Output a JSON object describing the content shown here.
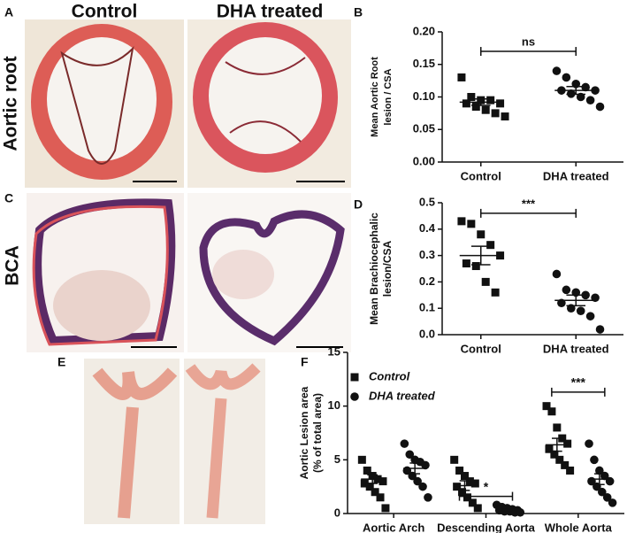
{
  "figure": {
    "panel_letters": [
      "A",
      "C",
      "E"
    ],
    "column_labels": [
      "Control",
      "DHA treated"
    ],
    "row_labels": [
      "Aortic root",
      "BCA"
    ]
  },
  "chart_data": [
    {
      "type": "dotplot",
      "panel_label": "B",
      "ylabel": [
        "Mean Aortic Root",
        "lesion / CSA"
      ],
      "categories": [
        "Control",
        "DHA treated"
      ],
      "groups": [
        {
          "marker": "square",
          "values": [
            0.13,
            0.1,
            0.095,
            0.095,
            0.09,
            0.09,
            0.085,
            0.08,
            0.075,
            0.07
          ],
          "mean": 0.092,
          "sem": 0.005
        },
        {
          "marker": "circle",
          "values": [
            0.14,
            0.13,
            0.12,
            0.115,
            0.11,
            0.11,
            0.105,
            0.1,
            0.095,
            0.085
          ],
          "mean": 0.11,
          "sem": 0.006
        }
      ],
      "ylim": [
        0,
        0.2
      ],
      "yticks": [
        {
          "value": 0,
          "label": "0.00"
        },
        {
          "value": 0.05,
          "label": "0.05"
        },
        {
          "value": 0.1,
          "label": "0.10"
        },
        {
          "value": 0.15,
          "label": "0.15"
        },
        {
          "value": 0.2,
          "label": "0.20"
        }
      ],
      "annotations": [
        {
          "text": "ns",
          "y": 0.17
        }
      ]
    },
    {
      "type": "dotplot",
      "panel_label": "D",
      "ylabel": [
        "Mean Brachiocephalic",
        "lesion/CSA"
      ],
      "categories": [
        "Control",
        "DHA treated"
      ],
      "groups": [
        {
          "marker": "square",
          "values": [
            0.43,
            0.42,
            0.38,
            0.34,
            0.3,
            0.27,
            0.26,
            0.2,
            0.16
          ],
          "mean": 0.3,
          "sem": 0.035
        },
        {
          "marker": "circle",
          "values": [
            0.23,
            0.17,
            0.16,
            0.15,
            0.14,
            0.12,
            0.1,
            0.09,
            0.07,
            0.02
          ],
          "mean": 0.13,
          "sem": 0.02
        }
      ],
      "ylim": [
        0,
        0.5
      ],
      "yticks": [
        {
          "value": 0,
          "label": "0.0"
        },
        {
          "value": 0.1,
          "label": "0.1"
        },
        {
          "value": 0.2,
          "label": "0.2"
        },
        {
          "value": 0.3,
          "label": "0.3"
        },
        {
          "value": 0.4,
          "label": "0.4"
        },
        {
          "value": 0.5,
          "label": "0.5"
        }
      ],
      "annotations": [
        {
          "text": "***",
          "y": 0.46
        }
      ]
    },
    {
      "type": "grouped-dotplot",
      "panel_label": "F",
      "ylabel": [
        "Aortic Lesion area",
        "(% of total area)"
      ],
      "categories": [
        "Aortic Arch",
        "Descending Aorta",
        "Whole Aorta"
      ],
      "series": [
        {
          "name": "Control",
          "marker": "square",
          "values": [
            [
              5,
              4,
              3.5,
              3.2,
              3,
              2.8,
              2.5,
              2,
              1.5,
              0.5
            ],
            [
              5,
              4,
              3.5,
              3,
              2.8,
              2.5,
              2,
              1.5,
              1,
              0.5
            ],
            [
              10,
              9.5,
              8,
              7,
              6.5,
              6,
              5.5,
              5,
              4.5,
              4
            ]
          ],
          "mean": [
            3.2,
            2.6,
            6.4
          ],
          "sem": [
            0.4,
            0.45,
            0.6
          ]
        },
        {
          "name": "DHA treated",
          "marker": "circle",
          "values": [
            [
              6.5,
              5.5,
              5,
              4.8,
              4.5,
              4,
              3.5,
              3,
              2.5,
              1.5
            ],
            [
              0.8,
              0.6,
              0.5,
              0.4,
              0.3,
              0.3,
              0.2,
              0.2,
              0.1,
              0.1
            ],
            [
              6.5,
              5,
              4,
              3.5,
              3,
              3,
              2.5,
              2,
              1.5,
              1
            ]
          ],
          "mean": [
            4.2,
            0.35,
            3.2
          ],
          "sem": [
            0.5,
            0.08,
            0.5
          ]
        }
      ],
      "ylim": [
        0,
        15
      ],
      "yticks": [
        0,
        5,
        10,
        15
      ],
      "annotations": [
        {
          "text": "*",
          "y": 1.6,
          "category": 1
        },
        {
          "text": "***",
          "y": 11.3,
          "category": 2
        }
      ]
    }
  ]
}
